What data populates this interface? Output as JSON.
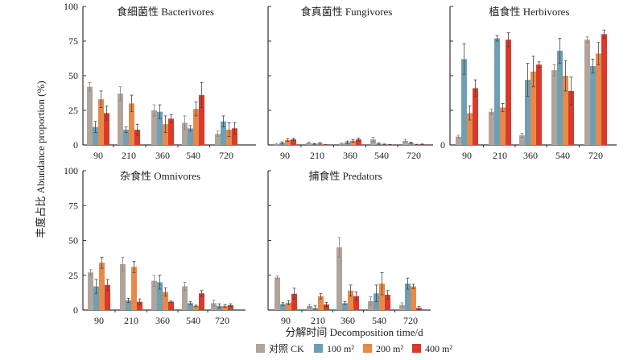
{
  "chart_data": {
    "type": "bar",
    "ylabel": "丰度占比 Abundance proportion (%)",
    "xlabel": "分解时间 Decomposition time/d",
    "categories": [
      "90",
      "210",
      "360",
      "540",
      "720"
    ],
    "legend": [
      {
        "name": "对照 CK",
        "color": "#b0a49b"
      },
      {
        "name": "100 m²",
        "color": "#6f9fb3"
      },
      {
        "name": "200 m²",
        "color": "#e8894a"
      },
      {
        "name": "400 m²",
        "color": "#d93a2b"
      }
    ],
    "ylim": [
      0,
      100
    ],
    "yticks": [
      0,
      25,
      50,
      75,
      100
    ],
    "panels": [
      {
        "title": "食细菌性 Bacterivores",
        "show_tick_labels": "all",
        "values": [
          [
            42,
            37,
            25,
            16,
            8
          ],
          [
            13,
            11,
            24,
            12,
            17
          ],
          [
            33,
            30,
            15,
            26,
            11
          ],
          [
            23,
            11,
            19,
            36,
            12
          ]
        ],
        "errors": [
          [
            3,
            5,
            4,
            5,
            2
          ],
          [
            4,
            2,
            5,
            2,
            4
          ],
          [
            6,
            6,
            6,
            5,
            5
          ],
          [
            5,
            4,
            3,
            9,
            4
          ]
        ]
      },
      {
        "title": "食真菌性 Fungivores",
        "show_tick_labels": "none",
        "values": [
          [
            0.5,
            1.5,
            1,
            4,
            3
          ],
          [
            1.5,
            0.8,
            2,
            1,
            1.5
          ],
          [
            3.5,
            1.2,
            3,
            0.5,
            0.3
          ],
          [
            4,
            0.2,
            4,
            0.3,
            0.5
          ]
        ],
        "errors": [
          [
            0.5,
            0.5,
            0.5,
            1.5,
            1
          ],
          [
            0.8,
            0.3,
            0.8,
            0.5,
            0.5
          ],
          [
            1,
            0.6,
            1,
            0.2,
            0.2
          ],
          [
            0.8,
            0.1,
            1,
            0.1,
            0.2
          ]
        ]
      },
      {
        "title": "植食性 Herbivores",
        "show_tick_labels": "zero",
        "values": [
          [
            6,
            24,
            7,
            54,
            76
          ],
          [
            62,
            77,
            47,
            68,
            57
          ],
          [
            23,
            27,
            53,
            50,
            66
          ],
          [
            41,
            76,
            58,
            39,
            80
          ]
        ],
        "errors": [
          [
            1,
            2,
            1.5,
            4,
            2
          ],
          [
            11,
            2,
            12,
            9,
            5
          ],
          [
            5,
            3,
            11,
            11,
            8
          ],
          [
            6,
            5,
            2,
            10,
            3
          ]
        ]
      },
      {
        "title": "杂食性 Omnivores",
        "show_tick_labels": "all",
        "values": [
          [
            27,
            33,
            21,
            17,
            5
          ],
          [
            17,
            7,
            20,
            5,
            3
          ],
          [
            34,
            31,
            13,
            3,
            3
          ],
          [
            18,
            6,
            6,
            12,
            3.5
          ]
        ],
        "errors": [
          [
            2,
            5,
            4,
            3,
            2
          ],
          [
            5,
            1.5,
            5,
            1,
            1.5
          ],
          [
            4,
            4,
            3,
            0.5,
            1
          ],
          [
            4,
            2,
            0.5,
            2,
            1
          ]
        ]
      },
      {
        "title": "捕食性 Predators",
        "show_tick_labels": "none",
        "values": [
          [
            23.4,
            3,
            45,
            6.5,
            3.7
          ],
          [
            4.3,
            1.5,
            5,
            12,
            19
          ],
          [
            5.3,
            10,
            14,
            19,
            17
          ],
          [
            11.7,
            4,
            10,
            11,
            1.5
          ]
        ],
        "errors": [
          [
            1,
            1,
            7,
            3,
            1.5
          ],
          [
            1,
            1.5,
            1,
            6,
            4
          ],
          [
            1.5,
            2,
            4,
            8,
            1.5
          ],
          [
            4,
            1.5,
            3,
            3,
            1
          ]
        ]
      }
    ]
  }
}
